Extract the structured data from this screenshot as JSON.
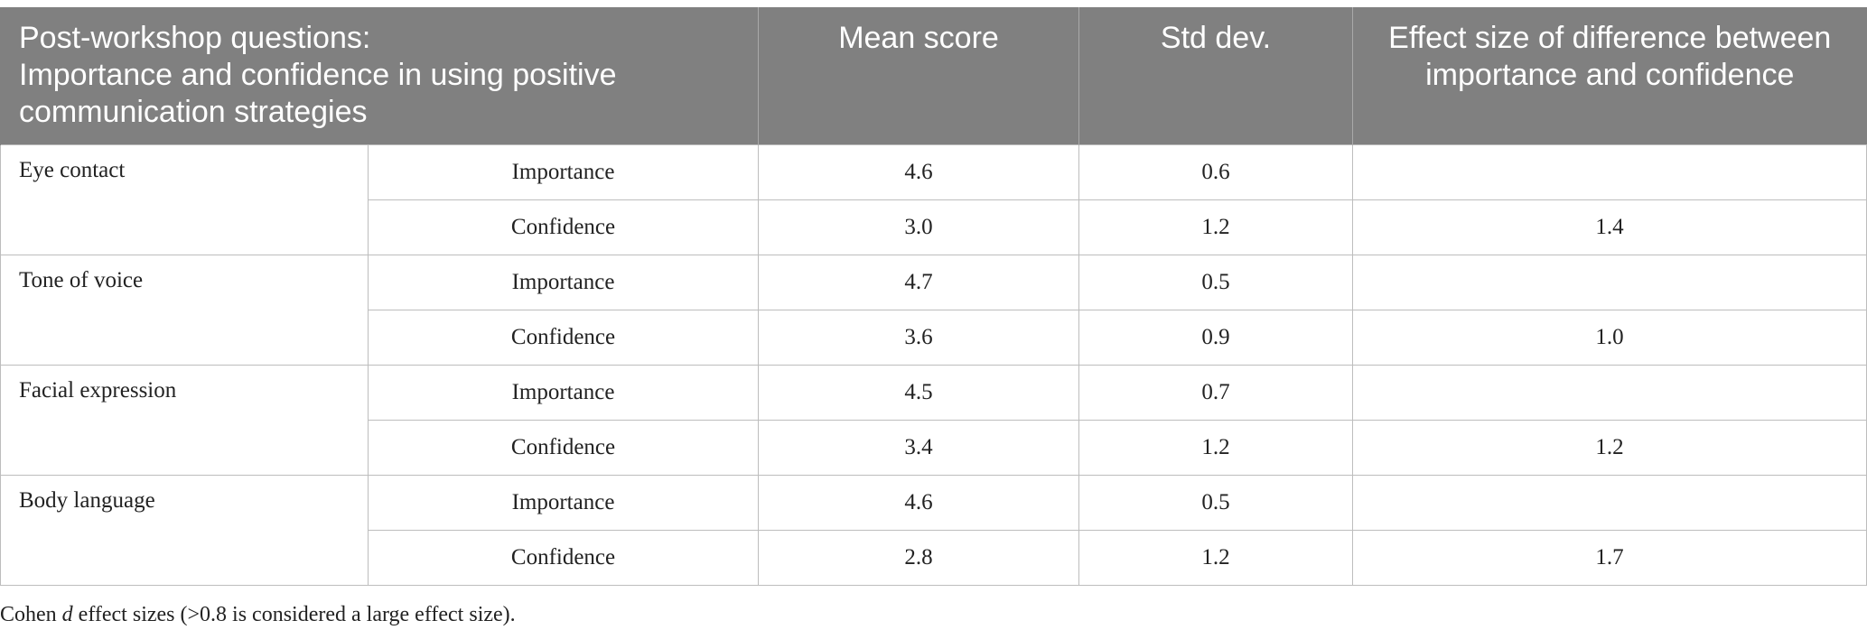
{
  "table": {
    "headers": [
      "Post-workshop questions:\nImportance and confidence in using positive communication strategies",
      "",
      "Mean score",
      "Std dev.",
      "Effect size of difference between importance and confidence"
    ],
    "groups": [
      {
        "label": "Eye contact",
        "rows": [
          {
            "measure": "Importance",
            "mean": "4.6",
            "std": "0.6",
            "effect": ""
          },
          {
            "measure": "Confidence",
            "mean": "3.0",
            "std": "1.2",
            "effect": "1.4"
          }
        ]
      },
      {
        "label": "Tone of voice",
        "rows": [
          {
            "measure": "Importance",
            "mean": "4.7",
            "std": "0.5",
            "effect": ""
          },
          {
            "measure": "Confidence",
            "mean": "3.6",
            "std": "0.9",
            "effect": "1.0"
          }
        ]
      },
      {
        "label": "Facial expression",
        "rows": [
          {
            "measure": "Importance",
            "mean": "4.5",
            "std": "0.7",
            "effect": ""
          },
          {
            "measure": "Confidence",
            "mean": "3.4",
            "std": "1.2",
            "effect": "1.2"
          }
        ]
      },
      {
        "label": "Body language",
        "rows": [
          {
            "measure": "Importance",
            "mean": "4.6",
            "std": "0.5",
            "effect": ""
          },
          {
            "measure": "Confidence",
            "mean": "2.8",
            "std": "1.2",
            "effect": "1.7"
          }
        ]
      }
    ]
  },
  "footnote": {
    "prefix": "Cohen ",
    "symbol": "d",
    "suffix": " effect sizes (>0.8 is considered a large effect size)."
  },
  "colors": {
    "header_background": "#808080",
    "header_text": "#ffffff",
    "grid_line": "#bdbdbd"
  }
}
